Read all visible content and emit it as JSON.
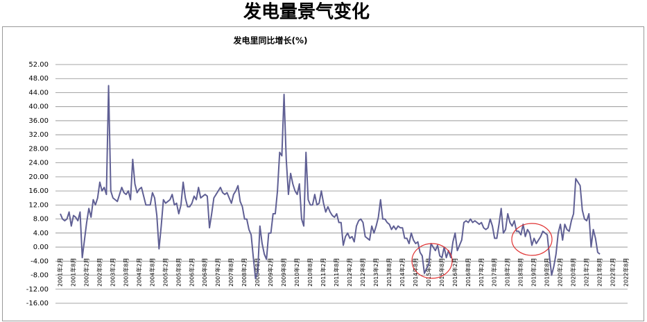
{
  "chart_data": {
    "type": "line",
    "title": "发电量景气变化",
    "subtitle": "发电里同比增长(%)",
    "color": "#5f5f94",
    "grid": true,
    "ylim": [
      -16,
      52
    ],
    "yticks": [
      {
        "value": -16,
        "label": "-16.00"
      },
      {
        "value": -12,
        "label": "-12.00"
      },
      {
        "value": -8,
        "label": "-8.00"
      },
      {
        "value": -4,
        "label": "-4.00"
      },
      {
        "value": 0,
        "label": "0.00"
      },
      {
        "value": 4,
        "label": "4.00"
      },
      {
        "value": 8,
        "label": "8.00"
      },
      {
        "value": 12,
        "label": "12.00"
      },
      {
        "value": 16,
        "label": "16.00"
      },
      {
        "value": 20,
        "label": "20.00"
      },
      {
        "value": 24,
        "label": "24.00"
      },
      {
        "value": 28,
        "label": "28.00"
      },
      {
        "value": 32,
        "label": "32.00"
      },
      {
        "value": 36,
        "label": "36.00"
      },
      {
        "value": 40,
        "label": "40.00"
      },
      {
        "value": 44,
        "label": "44.00"
      },
      {
        "value": 48,
        "label": "48.00"
      },
      {
        "value": 52,
        "label": "52.00"
      }
    ],
    "categories": [
      "2001年2月",
      null,
      null,
      null,
      null,
      null,
      "2001年8月",
      null,
      null,
      null,
      null,
      null,
      "2002年2月",
      null,
      null,
      null,
      null,
      null,
      "2002年8月",
      null,
      null,
      null,
      null,
      null,
      "2003年2月",
      null,
      null,
      null,
      null,
      null,
      "2003年8月",
      null,
      null,
      null,
      null,
      null,
      "2004年2月",
      null,
      null,
      null,
      null,
      null,
      "2004年8月",
      null,
      null,
      null,
      null,
      null,
      "2005年2月",
      null,
      null,
      null,
      null,
      null,
      "2005年8月",
      null,
      null,
      null,
      null,
      null,
      "2006年2月",
      null,
      null,
      null,
      null,
      null,
      "2006年8月",
      null,
      null,
      null,
      null,
      null,
      "2007年2月",
      null,
      null,
      null,
      null,
      null,
      "2007年8月",
      null,
      null,
      null,
      null,
      null,
      "2008年2月",
      null,
      null,
      null,
      null,
      null,
      "2008年8月",
      null,
      null,
      null,
      null,
      null,
      "2009年2月",
      null,
      null,
      null,
      null,
      null,
      "2009年8月",
      null,
      null,
      null,
      null,
      null,
      "2010年2月",
      null,
      null,
      null,
      null,
      null,
      "2010年8月",
      null,
      null,
      null,
      null,
      null,
      "2011年2月",
      null,
      null,
      null,
      null,
      null,
      "2011年8月",
      null,
      null,
      null,
      null,
      null,
      "2012年2月",
      null,
      null,
      null,
      null,
      null,
      "2012年8月",
      null,
      null,
      null,
      null,
      null,
      "2013年2月",
      null,
      null,
      null,
      null,
      null,
      "2013年8月",
      null,
      null,
      null,
      null,
      null,
      "2014年2月",
      null,
      null,
      null,
      null,
      null,
      "2014年8月",
      null,
      null,
      null,
      null,
      null,
      "2015年2月",
      null,
      null,
      null,
      null,
      null,
      "2015年8月",
      null,
      null,
      null,
      null,
      null,
      "2016年2月",
      null,
      null,
      null,
      null,
      null,
      "2016年8月",
      null,
      null,
      null,
      null,
      null,
      "2017年2月",
      null,
      null,
      null,
      null,
      null,
      "2017年8月",
      null,
      null,
      null,
      null,
      null,
      "2018年2月",
      null,
      null,
      null,
      null,
      null,
      "2018年8月",
      null,
      null,
      null,
      null,
      null,
      "2019年2月",
      null,
      null,
      null,
      null,
      null,
      "2019年8月",
      null,
      null,
      null,
      null,
      null,
      "2020年2月",
      null,
      null,
      null,
      null,
      null,
      "2020年8月",
      null,
      null,
      null,
      null,
      null,
      "2021年2月",
      null,
      null,
      null,
      null,
      null,
      "2021年8月",
      null,
      null,
      null,
      null,
      null,
      "2022年2月",
      null,
      null,
      null,
      null,
      null,
      "2022年8月"
    ],
    "values": [
      9.5,
      8,
      7.5,
      8,
      10,
      6,
      9,
      8.5,
      7.5,
      10,
      -3,
      2,
      7,
      11,
      8.5,
      13.5,
      12,
      14,
      18.5,
      16,
      17,
      15,
      46,
      16,
      14,
      13.5,
      13,
      15,
      17,
      15.5,
      15,
      16,
      13.5,
      25,
      18,
      15.5,
      16.5,
      17,
      14.5,
      12,
      12,
      12,
      15.5,
      14,
      9,
      -0.5,
      6,
      13.5,
      12.5,
      13,
      13.5,
      15,
      12,
      12.5,
      9.5,
      12,
      18.5,
      14,
      11.5,
      11.5,
      12.5,
      14.5,
      13.5,
      17,
      14,
      14.5,
      15,
      14.5,
      5.5,
      9.5,
      14,
      15,
      16,
      17,
      15.5,
      15,
      15.5,
      14,
      12.5,
      15,
      16,
      17.5,
      13,
      11.5,
      8,
      8,
      5,
      3.5,
      -3,
      -9,
      -7,
      6,
      1,
      -2,
      -3.5,
      4,
      4,
      9.5,
      9.5,
      16,
      27,
      26,
      43.5,
      25,
      15,
      21,
      18,
      16,
      15,
      18,
      8,
      6,
      27,
      13.5,
      12,
      12,
      15,
      12,
      12.5,
      16,
      12.5,
      10,
      11.5,
      10,
      9,
      8.5,
      9.5,
      7,
      7,
      0.5,
      3,
      4,
      2.5,
      3,
      1.5,
      6,
      7.5,
      8,
      7,
      3,
      2.5,
      2,
      6,
      4,
      6,
      8.5,
      13.5,
      8,
      8,
      7,
      6.5,
      5,
      6,
      5,
      6,
      5.5,
      5.5,
      2.5,
      2.5,
      1,
      4,
      2,
      1,
      1.5,
      -1.5,
      -2.5,
      -7.5,
      -6,
      -5,
      1,
      0,
      -1,
      0.5,
      -2.5,
      -3,
      0,
      -3,
      -1,
      -3,
      1.5,
      4,
      -1,
      0.5,
      2,
      7,
      7.5,
      7,
      8,
      7,
      7.5,
      7,
      6.5,
      7,
      5.5,
      5,
      5.5,
      8,
      6,
      2.5,
      2.5,
      6.5,
      11,
      4,
      5,
      9.5,
      7,
      6,
      7.5,
      4.5,
      4.5,
      3.5,
      6.5,
      3,
      5,
      4,
      0.5,
      2.5,
      1,
      2,
      3,
      4.5,
      4,
      3.5,
      -2.5,
      -8,
      -5.5,
      -2,
      4,
      6.5,
      2,
      6.5,
      5,
      4.5,
      7.5,
      9.5,
      19.5,
      18.5,
      17.5,
      10.5,
      8,
      7.5,
      9.5,
      0,
      5,
      2.5,
      -1.5,
      -2,
      null,
      null,
      null,
      null,
      null,
      null,
      null,
      null,
      null,
      null,
      null,
      null
    ]
  }
}
